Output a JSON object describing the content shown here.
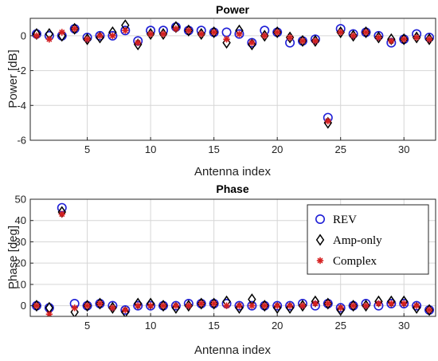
{
  "chart_data": [
    {
      "type": "scatter",
      "title": "Power",
      "xlabel": "Antenna index",
      "ylabel": "Power [dB]",
      "xlim": [
        0.5,
        32.5
      ],
      "ylim": [
        -6,
        1
      ],
      "xticks": [
        5,
        10,
        15,
        20,
        25,
        30
      ],
      "yticks": [
        -6,
        -4,
        -2,
        0
      ],
      "grid": true,
      "x": [
        1,
        2,
        3,
        4,
        5,
        6,
        7,
        8,
        9,
        10,
        11,
        12,
        13,
        14,
        15,
        16,
        17,
        18,
        19,
        20,
        21,
        22,
        23,
        24,
        25,
        26,
        27,
        28,
        29,
        30,
        31,
        32
      ],
      "series": [
        {
          "name": "REV",
          "marker": "circle",
          "color": "#1f1fd6",
          "values": [
            0.1,
            0.0,
            0.0,
            0.4,
            -0.1,
            0.0,
            0.0,
            0.3,
            -0.3,
            0.3,
            0.3,
            0.5,
            0.3,
            0.3,
            0.2,
            0.2,
            0.1,
            -0.4,
            0.3,
            0.2,
            -0.4,
            -0.3,
            -0.2,
            -4.7,
            0.4,
            0.1,
            0.2,
            0.0,
            -0.4,
            -0.2,
            0.1,
            -0.1
          ]
        },
        {
          "name": "Amp-only",
          "marker": "diamond",
          "color": "#000000",
          "values": [
            0.1,
            0.1,
            0.0,
            0.4,
            -0.2,
            -0.1,
            0.2,
            0.6,
            -0.5,
            0.1,
            0.1,
            0.5,
            0.3,
            0.1,
            0.2,
            -0.4,
            0.3,
            -0.5,
            0.0,
            0.2,
            -0.1,
            -0.3,
            -0.3,
            -5.0,
            0.2,
            0.0,
            0.2,
            -0.1,
            -0.2,
            -0.2,
            -0.1,
            -0.2
          ]
        },
        {
          "name": "Complex",
          "marker": "asterisk",
          "color": "#d62020",
          "values": [
            0.0,
            -0.2,
            0.2,
            0.4,
            -0.2,
            0.0,
            0.0,
            0.3,
            -0.4,
            0.1,
            0.1,
            0.4,
            0.3,
            0.1,
            0.2,
            -0.2,
            0.1,
            -0.4,
            0.0,
            0.2,
            -0.1,
            -0.3,
            -0.3,
            -4.9,
            0.2,
            0.0,
            0.2,
            -0.1,
            -0.3,
            -0.2,
            -0.1,
            -0.2
          ]
        }
      ]
    },
    {
      "type": "scatter",
      "title": "Phase",
      "xlabel": "Antenna index",
      "ylabel": "Phase [deg]",
      "xlim": [
        0.5,
        32.5
      ],
      "ylim": [
        -5,
        50
      ],
      "xticks": [
        5,
        10,
        15,
        20,
        25,
        30
      ],
      "yticks": [
        0,
        10,
        20,
        30,
        40,
        50
      ],
      "grid": true,
      "legend_position": "upper-right",
      "x": [
        1,
        2,
        3,
        4,
        5,
        6,
        7,
        8,
        9,
        10,
        11,
        12,
        13,
        14,
        15,
        16,
        17,
        18,
        19,
        20,
        21,
        22,
        23,
        24,
        25,
        26,
        27,
        28,
        29,
        30,
        31,
        32
      ],
      "series": [
        {
          "name": "REV",
          "marker": "circle",
          "color": "#1f1fd6",
          "values": [
            0,
            -1,
            46,
            1,
            0,
            1,
            0,
            -2,
            0,
            0,
            0,
            0,
            1,
            1,
            1,
            1,
            0,
            0,
            0,
            0,
            0,
            1,
            0,
            1,
            -1,
            0,
            1,
            0,
            1,
            1,
            0,
            -2
          ]
        },
        {
          "name": "Amp-only",
          "marker": "diamond",
          "color": "#000000",
          "values": [
            0,
            -1,
            44,
            -3,
            0,
            1,
            -1,
            -3,
            1,
            1,
            0,
            -1,
            0,
            1,
            1,
            2,
            -1,
            3,
            0,
            -1,
            -1,
            0,
            2,
            1,
            -2,
            0,
            0,
            2,
            2,
            2,
            -1,
            -2
          ]
        },
        {
          "name": "Complex",
          "marker": "asterisk",
          "color": "#d62020",
          "values": [
            0,
            -4,
            43,
            -1,
            0,
            1,
            -1,
            -2,
            0,
            0,
            0,
            0,
            0,
            1,
            1,
            0,
            0,
            0,
            0,
            0,
            0,
            0,
            1,
            1,
            -1,
            0,
            0,
            1,
            1,
            1,
            0,
            -2
          ]
        }
      ]
    }
  ]
}
